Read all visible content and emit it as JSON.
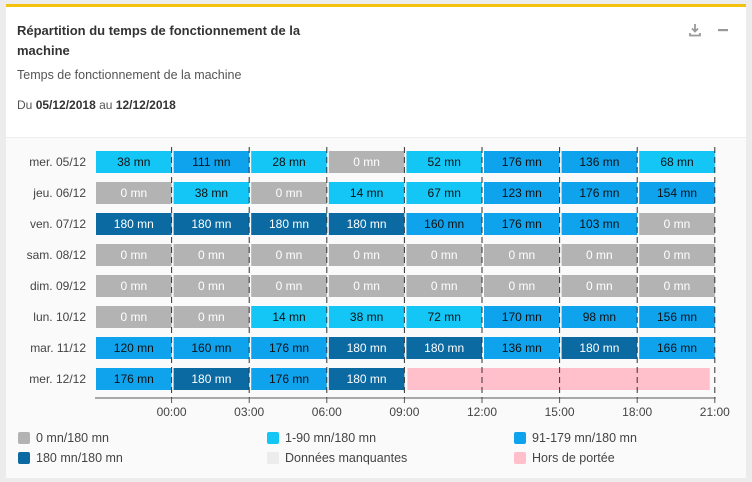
{
  "header": {
    "title": "Répartition du temps de fonctionnement de la machine",
    "subtitle": "Temps de fonctionnement de la machine",
    "range_prefix": "Du",
    "range_start": "05/12/2018",
    "range_mid": "au",
    "range_end": "12/12/2018",
    "download_icon": "download-icon",
    "minimize_icon": "minus-icon"
  },
  "colors": {
    "zero": "#b3b3b3",
    "low": "#13c6f5",
    "mid": "#0fa3ee",
    "full": "#0a6aa1",
    "missing": "#ececec",
    "out": "#ffc0cb"
  },
  "legend": [
    {
      "label": "0 mn/180 mn",
      "color_key": "zero"
    },
    {
      "label": "1-90 mn/180 mn",
      "color_key": "low"
    },
    {
      "label": "91-179 mn/180 mn",
      "color_key": "mid"
    },
    {
      "label": "180 mn/180 mn",
      "color_key": "full"
    },
    {
      "label": "Données manquantes",
      "color_key": "missing"
    },
    {
      "label": "Hors de portée",
      "color_key": "out"
    }
  ],
  "chart_data": {
    "type": "heatmap",
    "x_ticks": [
      "00:00",
      "03:00",
      "06:00",
      "09:00",
      "12:00",
      "15:00",
      "18:00",
      "21:00"
    ],
    "slot_hours": 3,
    "rows": [
      {
        "label": "mer. 05/12",
        "values": [
          38,
          111,
          28,
          0,
          52,
          176,
          136,
          68
        ]
      },
      {
        "label": "jeu. 06/12",
        "values": [
          0,
          38,
          0,
          14,
          67,
          123,
          176,
          154
        ]
      },
      {
        "label": "ven. 07/12",
        "values": [
          180,
          180,
          180,
          180,
          160,
          176,
          103,
          0
        ]
      },
      {
        "label": "sam. 08/12",
        "values": [
          0,
          0,
          0,
          0,
          0,
          0,
          0,
          0
        ]
      },
      {
        "label": "dim. 09/12",
        "values": [
          0,
          0,
          0,
          0,
          0,
          0,
          0,
          0
        ]
      },
      {
        "label": "lun. 10/12",
        "values": [
          0,
          0,
          14,
          38,
          72,
          170,
          98,
          156
        ]
      },
      {
        "label": "mar. 11/12",
        "values": [
          120,
          160,
          176,
          180,
          180,
          136,
          180,
          166
        ]
      },
      {
        "label": "mer. 12/12",
        "values": [
          176,
          180,
          176,
          180,
          null,
          null,
          null,
          null
        ]
      }
    ],
    "unit": "mn"
  }
}
